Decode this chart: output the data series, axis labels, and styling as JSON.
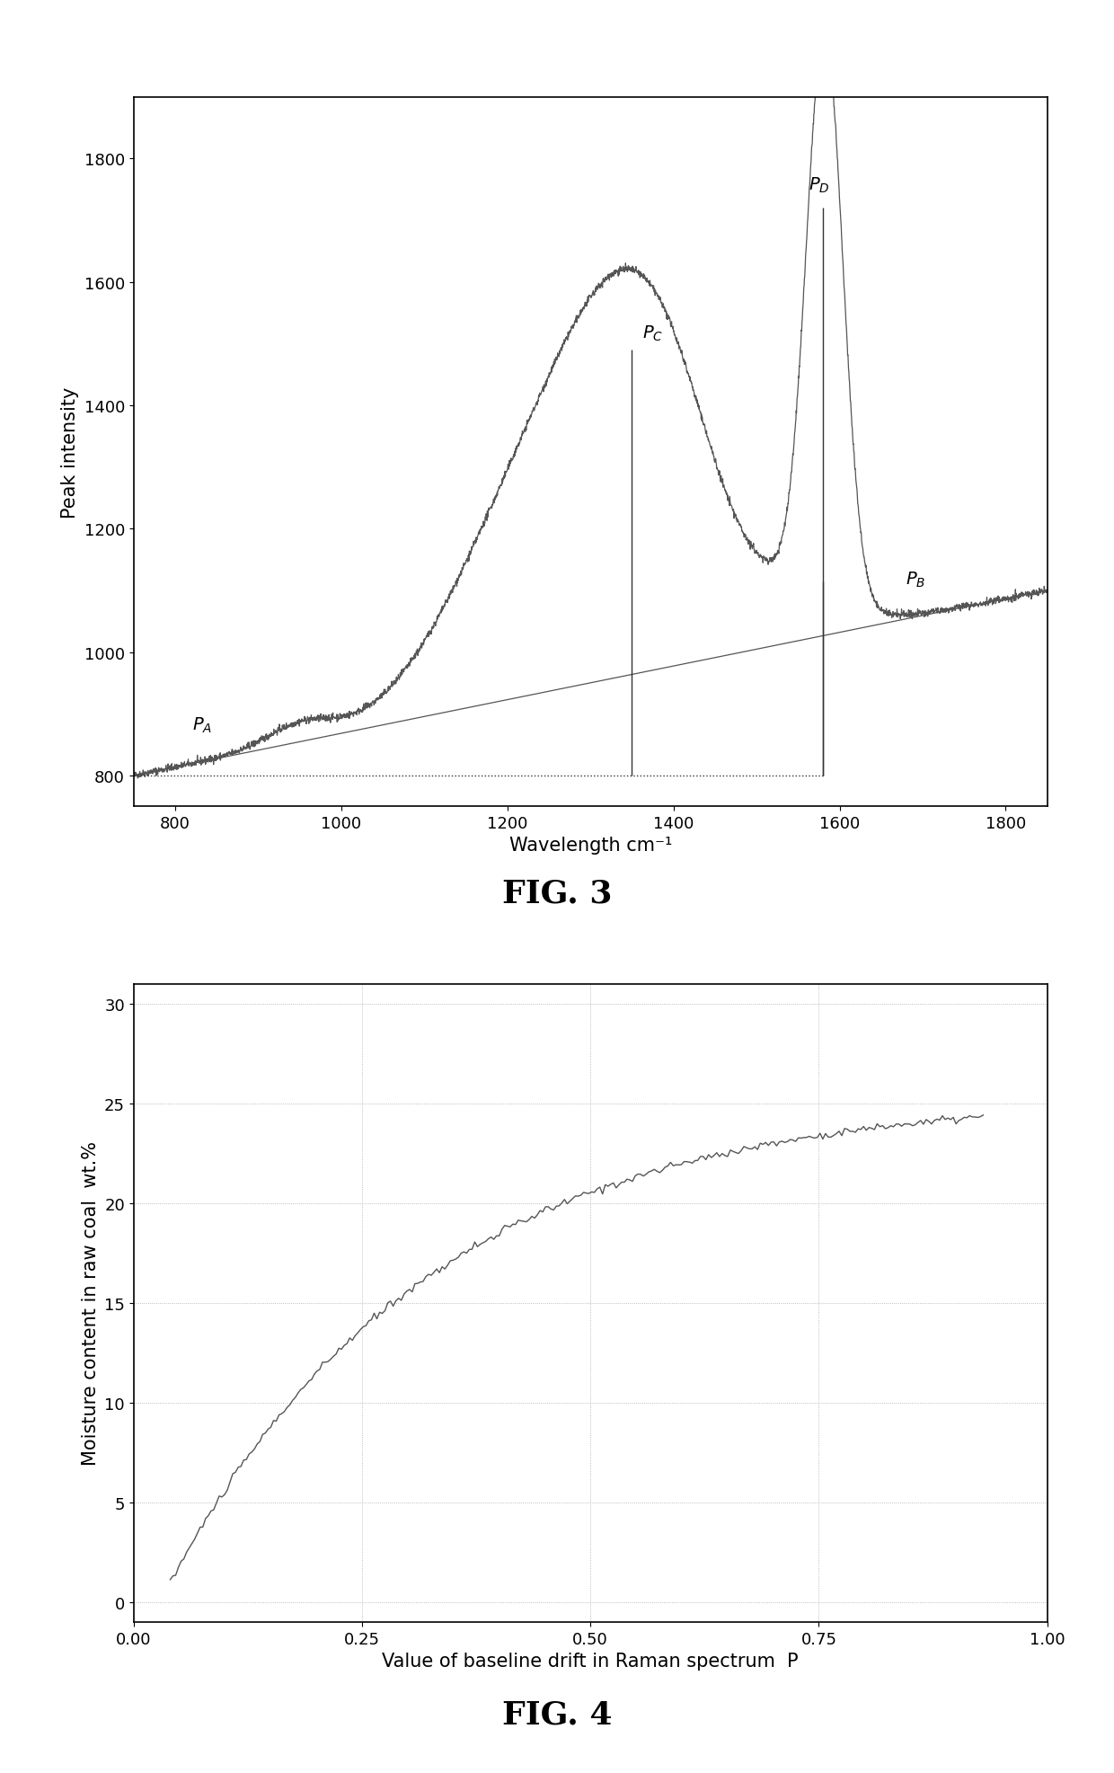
{
  "fig3": {
    "title": "FIG. 3",
    "xlabel": "Wavelength cm⁻¹",
    "ylabel": "Peak intensity",
    "xlim": [
      750,
      1850
    ],
    "ylim": [
      750,
      1900
    ],
    "xticks": [
      800,
      1000,
      1200,
      1400,
      1600,
      1800
    ],
    "yticks": [
      800,
      1000,
      1200,
      1400,
      1600,
      1800
    ],
    "line_color": "#555555",
    "baseline_color": "#555555",
    "vline_color": "#333333",
    "hline_color": "#333333",
    "vline_x1": 1350,
    "vline_x2": 1580,
    "hline_y": 800,
    "PA_x": 820,
    "PA_y": 875,
    "PB_x": 1680,
    "PB_y": 1110,
    "PC_x": 1355,
    "PC_y": 1490,
    "PD_x": 1555,
    "PD_y": 1730
  },
  "fig4": {
    "title": "FIG. 4",
    "xlabel": "Value of baseline drift in Raman spectrum  P",
    "ylabel": "Moisture content in raw coal  wt.%",
    "xlim": [
      0.0,
      1.0
    ],
    "ylim": [
      -1,
      31
    ],
    "xticks": [
      0.0,
      0.25,
      0.5,
      0.75,
      1.0
    ],
    "ytick_vals": [
      0,
      5,
      10,
      15,
      20,
      25,
      30
    ],
    "line_color": "#555555"
  },
  "background_color": "#ffffff",
  "fig_title_fontsize": 26,
  "axis_label_fontsize": 15,
  "tick_fontsize": 13,
  "annotation_fontsize": 14
}
